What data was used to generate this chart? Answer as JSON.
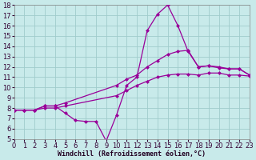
{
  "xlabel": "Windchill (Refroidissement éolien,°C)",
  "bg_color": "#c8eaea",
  "grid_color": "#a0cccc",
  "line_color": "#990099",
  "xlim": [
    0,
    23
  ],
  "ylim": [
    5,
    18
  ],
  "xticks": [
    0,
    1,
    2,
    3,
    4,
    5,
    6,
    7,
    8,
    9,
    10,
    11,
    12,
    13,
    14,
    15,
    16,
    17,
    18,
    19,
    20,
    21,
    22,
    23
  ],
  "yticks": [
    5,
    6,
    7,
    8,
    9,
    10,
    11,
    12,
    13,
    14,
    15,
    16,
    17,
    18
  ],
  "curve1_x": [
    0,
    1,
    2,
    3,
    4,
    5,
    6,
    7,
    8,
    9,
    10,
    11,
    12,
    13,
    14,
    15,
    16,
    17,
    18,
    19,
    20,
    21,
    22,
    23
  ],
  "curve1_y": [
    7.8,
    7.8,
    7.8,
    8.2,
    8.2,
    7.5,
    6.8,
    6.7,
    6.7,
    4.8,
    7.3,
    10.2,
    11.0,
    15.5,
    17.1,
    18.0,
    16.0,
    13.5,
    12.0,
    12.1,
    11.9,
    11.8,
    11.8,
    11.2
  ],
  "curve2_x": [
    0,
    1,
    2,
    3,
    4,
    5,
    10,
    11,
    12,
    13,
    14,
    15,
    16,
    17,
    18,
    19,
    20,
    21,
    22,
    23
  ],
  "curve2_y": [
    7.8,
    7.8,
    7.8,
    8.2,
    8.2,
    8.5,
    10.2,
    10.8,
    11.2,
    12.0,
    12.6,
    13.2,
    13.5,
    13.6,
    12.0,
    12.1,
    12.0,
    11.8,
    11.8,
    11.2
  ],
  "curve3_x": [
    0,
    1,
    2,
    3,
    4,
    5,
    10,
    11,
    12,
    13,
    14,
    15,
    16,
    17,
    18,
    19,
    20,
    21,
    22,
    23
  ],
  "curve3_y": [
    7.8,
    7.8,
    7.8,
    8.0,
    8.0,
    8.2,
    9.2,
    9.7,
    10.2,
    10.6,
    11.0,
    11.2,
    11.3,
    11.3,
    11.2,
    11.4,
    11.4,
    11.2,
    11.2,
    11.1
  ],
  "tick_fontsize": 6,
  "xlabel_fontsize": 6,
  "marker_size": 2.5,
  "line_width": 0.9
}
